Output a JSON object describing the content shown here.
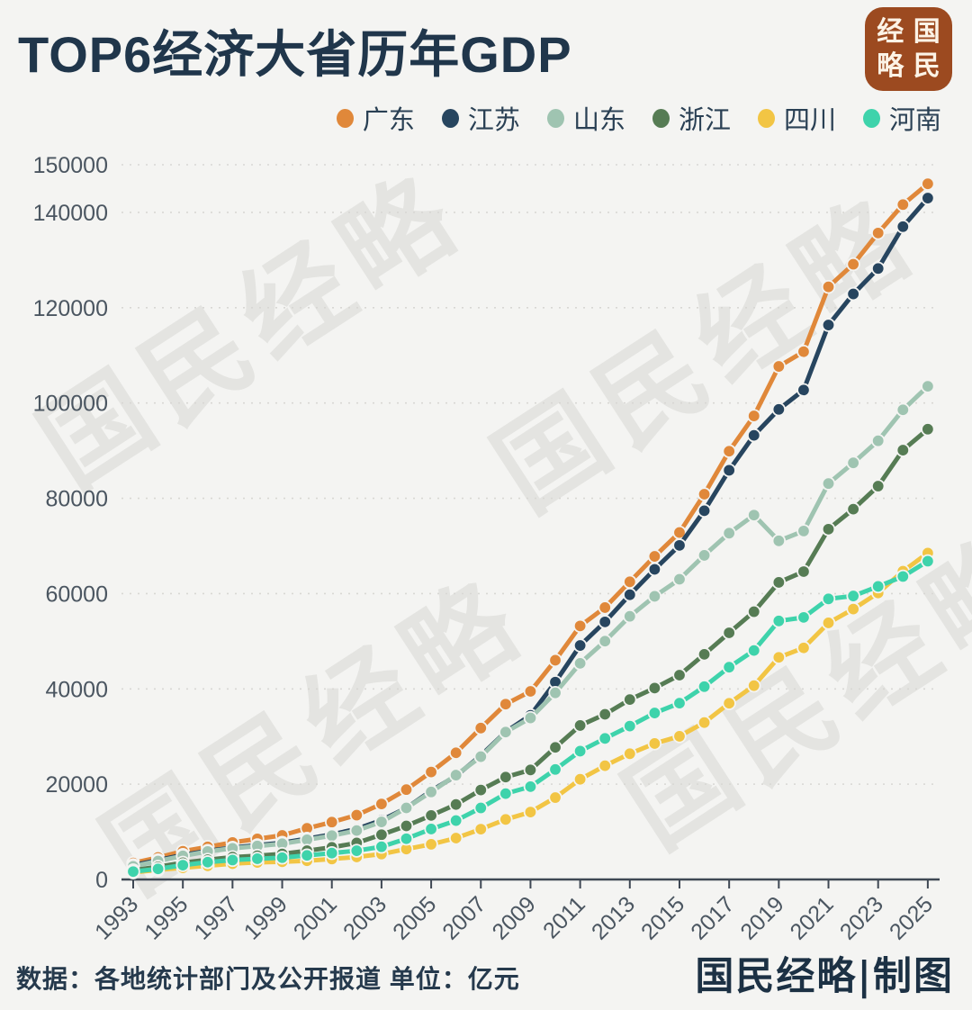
{
  "page": {
    "background_color": "#f4f4f2"
  },
  "header": {
    "title": "TOP6经济大省历年GDP"
  },
  "logo": {
    "reading": "国民经略",
    "chars": [
      "经",
      "国",
      "略",
      "民"
    ],
    "bg_color": "#9c4a20"
  },
  "watermark": {
    "text": "国民经略"
  },
  "footer": {
    "source": "数据：各地统计部门及公开报道  单位：亿元",
    "credit": "国民经略|制图"
  },
  "chart_data": {
    "type": "line",
    "title": "TOP6经济大省历年GDP",
    "unit": "亿元",
    "x": [
      1993,
      1994,
      1995,
      1996,
      1997,
      1998,
      1999,
      2000,
      2001,
      2002,
      2003,
      2004,
      2005,
      2006,
      2007,
      2008,
      2009,
      2010,
      2011,
      2012,
      2013,
      2014,
      2015,
      2016,
      2017,
      2018,
      2019,
      2020,
      2021,
      2022,
      2023,
      2024,
      2025
    ],
    "x_tick_labels": [
      "1993",
      "1995",
      "1997",
      "1999",
      "2001",
      "2003",
      "2005",
      "2007",
      "2009",
      "2011",
      "2013",
      "2015",
      "2017",
      "2019",
      "2021",
      "2023",
      "2025"
    ],
    "y_ticks": [
      0,
      20000,
      40000,
      60000,
      80000,
      100000,
      120000,
      140000,
      150000
    ],
    "ylim": [
      0,
      150000
    ],
    "grid": "horizontal dashed at labeled ticks above zero",
    "legend_position": "top-right",
    "marker": "filled circle",
    "series": [
      {
        "name": "广东",
        "color": "#e0883a",
        "values": [
          3469,
          4619,
          5933,
          6835,
          7774,
          8530,
          9251,
          10741,
          12039,
          13502,
          15845,
          18865,
          22557,
          26588,
          31777,
          36797,
          39483,
          46013,
          53210,
          57068,
          62475,
          67810,
          72813,
          80855,
          89879,
          97278,
          107671,
          110761,
          124370,
          129119,
          135673,
          141634,
          146000
        ]
      },
      {
        "name": "江苏",
        "color": "#27455f",
        "values": [
          2998,
          4057,
          5155,
          6004,
          6680,
          7200,
          7698,
          8554,
          9457,
          10607,
          12443,
          15004,
          18599,
          21742,
          26018,
          30982,
          34457,
          41425,
          49110,
          54058,
          59753,
          65088,
          70116,
          77388,
          85870,
          93207,
          98656,
          102719,
          116364,
          122876,
          128222,
          137008,
          143000
        ]
      },
      {
        "name": "山东",
        "color": "#9fc4b1",
        "values": [
          2770,
          3872,
          4953,
          5884,
          6537,
          7021,
          7493,
          8337,
          9195,
          10275,
          12078,
          15021,
          18366,
          21900,
          25776,
          30933,
          33896,
          39169,
          45361,
          50013,
          55230,
          59426,
          63002,
          68024,
          72678,
          76469,
          71067,
          73129,
          83095,
          87435,
          92069,
          98566,
          103500
        ]
      },
      {
        "name": "浙江",
        "color": "#567c54",
        "values": [
          1926,
          2667,
          3525,
          4146,
          4686,
          4987,
          5365,
          6036,
          6748,
          7670,
          9395,
          11243,
          13438,
          15742,
          18780,
          21487,
          22990,
          27722,
          32319,
          34665,
          37757,
          40173,
          42886,
          47251,
          51768,
          56197,
          62352,
          64613,
          73516,
          77715,
          82553,
          90100,
          94500
        ]
      },
      {
        "name": "四川",
        "color": "#f2c544",
        "values": [
          1486,
          2001,
          2443,
          2872,
          3320,
          3580,
          3711,
          3928,
          4293,
          4725,
          5333,
          6379,
          7385,
          8690,
          10562,
          12601,
          14151,
          17185,
          21027,
          23873,
          26392,
          28537,
          30053,
          32935,
          36980,
          40678,
          46616,
          48599,
          53851,
          56750,
          60133,
          64697,
          68500
        ]
      },
      {
        "name": "河南",
        "color": "#3ed3ab",
        "values": [
          1660,
          2217,
          3003,
          3635,
          4079,
          4356,
          4576,
          5053,
          5533,
          6035,
          6868,
          8554,
          10587,
          12363,
          15012,
          18019,
          19480,
          23092,
          26931,
          29599,
          32191,
          34938,
          37002,
          40472,
          44553,
          48056,
          54259,
          54997,
          58887,
          59500,
          61500,
          63590,
          66800
        ]
      }
    ]
  }
}
